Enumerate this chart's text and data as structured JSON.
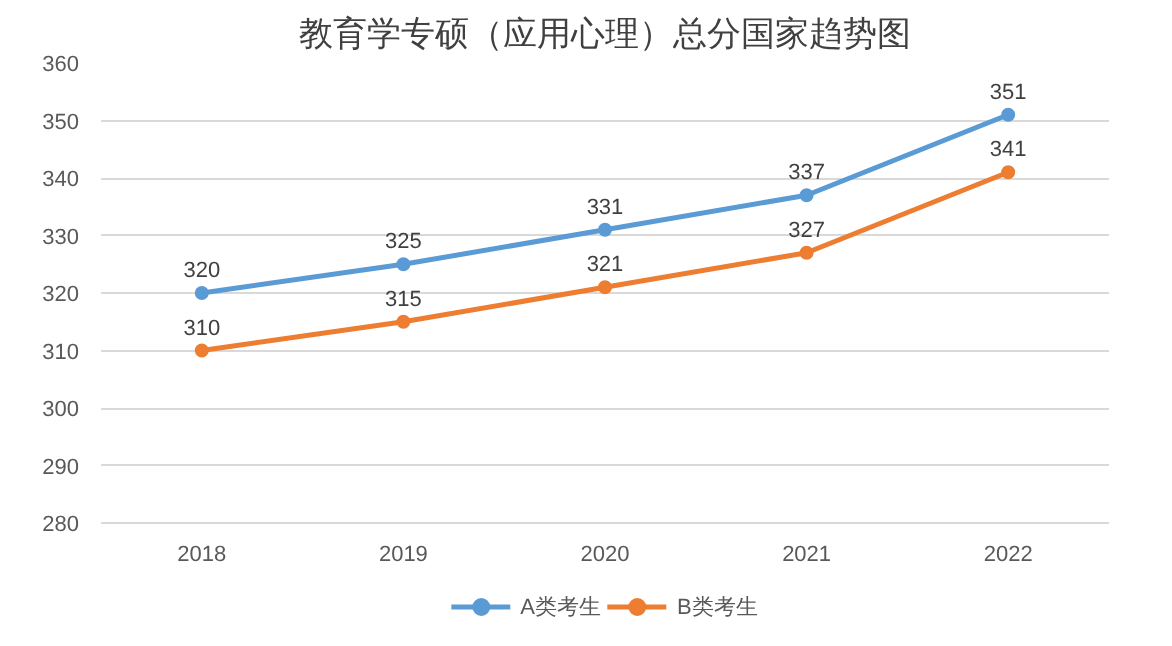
{
  "chart_data": {
    "type": "line",
    "title": "教育学专硕（应用心理）总分国家趋势图",
    "categories": [
      "2018",
      "2019",
      "2020",
      "2021",
      "2022"
    ],
    "series": [
      {
        "name": "A类考生",
        "color": "#5b9bd5",
        "values": [
          320,
          325,
          331,
          337,
          351
        ]
      },
      {
        "name": "B类考生",
        "color": "#ed7d31",
        "values": [
          310,
          315,
          321,
          327,
          341
        ]
      }
    ],
    "ylim": [
      280,
      360
    ],
    "yticks": [
      280,
      290,
      300,
      310,
      320,
      330,
      340,
      350,
      360
    ],
    "grid": "y",
    "legend": "bottom",
    "marker": "circle",
    "line_style": "solid",
    "data_labels": true
  }
}
